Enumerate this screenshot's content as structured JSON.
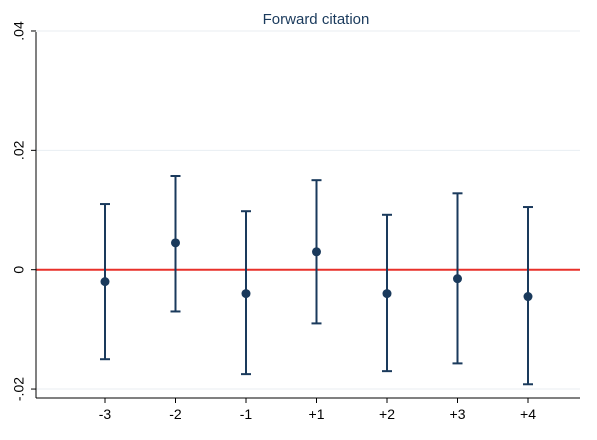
{
  "chart_data": {
    "type": "scatter",
    "title": "Forward citation",
    "xlabel": "",
    "ylabel": "",
    "categories": [
      "-3",
      "-2",
      "-1",
      "+1",
      "+2",
      "+3",
      "+4"
    ],
    "series": [
      {
        "values": [
          -0.002,
          0.0045,
          -0.004,
          0.003,
          -0.004,
          -0.0015,
          -0.0045
        ],
        "ci_upper": [
          0.011,
          0.0157,
          0.0098,
          0.015,
          0.0092,
          0.0128,
          0.0105
        ],
        "ci_lower": [
          -0.015,
          -0.007,
          -0.0175,
          -0.009,
          -0.017,
          -0.0157,
          -0.0192
        ]
      }
    ],
    "ylim": [
      -0.0215,
      0.0405
    ],
    "yticks": [
      -0.02,
      0,
      0.02,
      0.04
    ],
    "ytick_labels": [
      "-.02",
      "0",
      ".02",
      ".04"
    ],
    "reference_line": 0,
    "grid": true,
    "colors": {
      "marker": "#1a3a5c",
      "reference_line": "#e8312a",
      "grid": "#e8eef2",
      "axis": "#000000"
    }
  }
}
